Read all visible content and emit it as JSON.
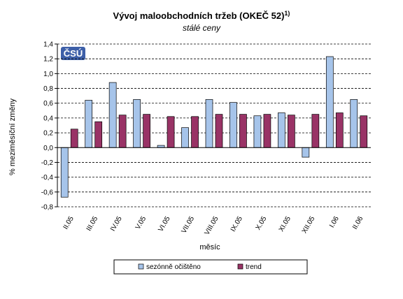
{
  "chart_data": {
    "type": "bar",
    "title": "Vývoj maloobchodních tržeb (OKEČ 52)",
    "title_superscript": "1)",
    "subtitle": "stálé ceny",
    "xlabel": "měsíc",
    "ylabel": "% meziměsíční změny",
    "ylim": [
      -0.8,
      1.4
    ],
    "ytick_step": 0.2,
    "yticks": [
      "1,4",
      "1,2",
      "1,0",
      "0,8",
      "0,6",
      "0,4",
      "0,2",
      "0,0",
      "-0,2",
      "-0,4",
      "-0,6",
      "-0,8"
    ],
    "grid": "horizontal-dashed",
    "legend_position": "bottom",
    "logo": "ČSÚ",
    "categories": [
      "II.05",
      "III.05",
      "IV.05",
      "V.05",
      "VI.05",
      "VII.05",
      "VIII.05",
      "IX.05",
      "X.05",
      "XI.05",
      "XII.05",
      "I.06",
      "II.06"
    ],
    "series": [
      {
        "name": "sezónně očištěno",
        "color": "#a6c4ea",
        "values": [
          -0.67,
          0.64,
          0.88,
          0.65,
          0.03,
          0.27,
          0.65,
          0.61,
          0.43,
          0.47,
          -0.13,
          1.23,
          0.65
        ]
      },
      {
        "name": "trend",
        "color": "#993366",
        "values": [
          0.25,
          0.35,
          0.44,
          0.45,
          0.42,
          0.42,
          0.45,
          0.45,
          0.45,
          0.44,
          0.45,
          0.47,
          0.43
        ]
      }
    ]
  }
}
